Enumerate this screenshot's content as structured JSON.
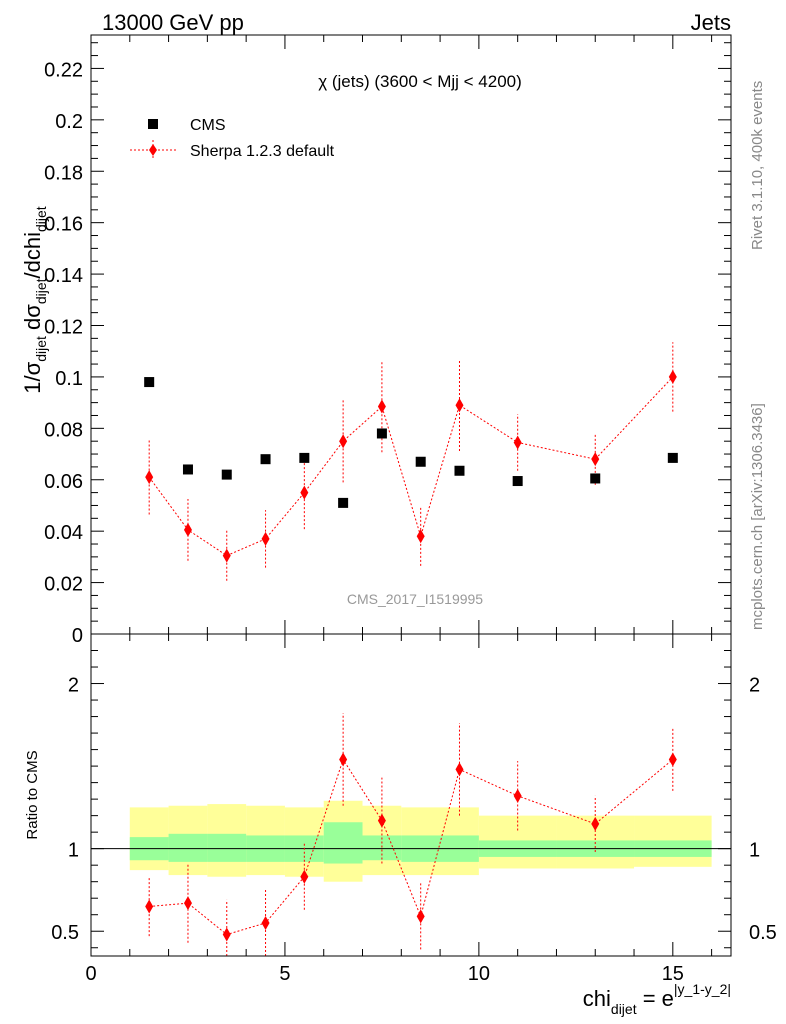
{
  "header": {
    "left": "13000 GeV pp",
    "right": "Jets"
  },
  "side_labels": {
    "rivet": "Rivet 3.1.10,  400k events",
    "mcplots": "mcplots.cern.ch [arXiv:1306.3436]"
  },
  "colors": {
    "data": "#000000",
    "mc": "#ff0000",
    "band_inner": "#99ff99",
    "band_outer": "#ffff99",
    "watermark": "#999999"
  },
  "chart_data": [
    {
      "type": "scatter",
      "panel": "main",
      "title": "χ (jets) (3600 < Mjj < 4200)",
      "watermark": "CMS_2017_I1519995",
      "ylabel": {
        "main": "1/σ",
        "sub1": "dijet",
        "mid": " dσ",
        "sub2": "dijet",
        "tail": "/dchi",
        "sub3": "dijet"
      },
      "xlim": [
        0,
        16.5
      ],
      "ylim": [
        0,
        0.233
      ],
      "yticks": [
        0,
        0.02,
        0.04,
        0.06,
        0.08,
        0.1,
        0.12,
        0.14,
        0.16,
        0.18,
        0.2,
        0.22
      ],
      "ytick_labels": [
        "0",
        "0.02",
        "0.04",
        "0.06",
        "0.08",
        "0.1",
        "0.12",
        "0.14",
        "0.16",
        "0.18",
        "0.2",
        "0.22"
      ],
      "legend": {
        "position": "top-left",
        "entries": [
          "CMS",
          "Sherpa 1.2.3 default"
        ]
      },
      "series": [
        {
          "name": "CMS",
          "x": [
            1.5,
            2.5,
            3.5,
            4.5,
            5.5,
            6.5,
            7.5,
            8.5,
            9.5,
            11,
            13,
            15
          ],
          "y": [
            0.098,
            0.064,
            0.062,
            0.068,
            0.0685,
            0.051,
            0.078,
            0.067,
            0.0635,
            0.0595,
            0.0605,
            0.0685
          ]
        },
        {
          "name": "Sherpa 1.2.3 default",
          "x": [
            1.5,
            2.5,
            3.5,
            4.5,
            5.5,
            6.5,
            7.5,
            8.5,
            9.5,
            11,
            13,
            15
          ],
          "y": [
            0.061,
            0.0405,
            0.0305,
            0.037,
            0.055,
            0.075,
            0.0885,
            0.038,
            0.089,
            0.0745,
            0.068,
            0.1
          ],
          "err": [
            0.0145,
            0.012,
            0.0098,
            0.0112,
            0.0142,
            0.016,
            0.0178,
            0.0115,
            0.0178,
            0.011,
            0.01,
            0.0135
          ]
        }
      ]
    },
    {
      "type": "scatter",
      "panel": "ratio",
      "ylabel": "Ratio to CMS",
      "xlabel": {
        "main": "chi",
        "sub": "dijet",
        "eq": " = e",
        "sup": "|y_1-y_2|"
      },
      "xlim": [
        0,
        16.5
      ],
      "ylim": [
        0.35,
        2.3
      ],
      "xticks": [
        0,
        5,
        10,
        15
      ],
      "xtick_labels": [
        "0",
        "5",
        "10",
        "15"
      ],
      "yticks": [
        0.5,
        1,
        2
      ],
      "ytick_labels": [
        "0.5",
        "1",
        "2"
      ],
      "reference": 1,
      "bands": {
        "edges": [
          1,
          2,
          3,
          4,
          5,
          6,
          7,
          8,
          10,
          12,
          14,
          16
        ],
        "inner_lo": [
          0.93,
          0.92,
          0.92,
          0.92,
          0.92,
          0.91,
          0.93,
          0.92,
          0.95,
          0.95,
          0.95
        ],
        "inner_hi": [
          1.07,
          1.09,
          1.09,
          1.08,
          1.08,
          1.16,
          1.08,
          1.08,
          1.05,
          1.05,
          1.05
        ],
        "outer_lo": [
          0.87,
          0.84,
          0.83,
          0.84,
          0.83,
          0.8,
          0.84,
          0.84,
          0.88,
          0.88,
          0.89
        ],
        "outer_hi": [
          1.25,
          1.26,
          1.27,
          1.26,
          1.25,
          1.29,
          1.26,
          1.25,
          1.2,
          1.2,
          1.2
        ]
      },
      "series": [
        {
          "name": "Sherpa 1.2.3 default / CMS",
          "x": [
            1.5,
            2.5,
            3.5,
            4.5,
            5.5,
            6.5,
            7.5,
            8.5,
            9.5,
            11,
            13,
            15
          ],
          "y": [
            0.65,
            0.67,
            0.48,
            0.55,
            0.83,
            1.54,
            1.17,
            0.59,
            1.48,
            1.32,
            1.15,
            1.54
          ],
          "err": [
            0.18,
            0.24,
            0.21,
            0.2,
            0.2,
            0.28,
            0.26,
            0.2,
            0.28,
            0.21,
            0.17,
            0.19
          ]
        }
      ]
    }
  ]
}
